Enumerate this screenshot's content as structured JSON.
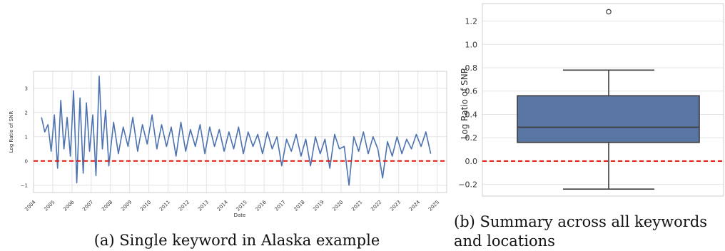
{
  "chart_data": [
    {
      "type": "line",
      "xlabel": "Date",
      "ylabel": "Log Ratio of SNR",
      "xlim": [
        "2004-01-01",
        "2025-07-01"
      ],
      "ylim": [
        -1.3,
        3.7
      ],
      "yticks": [
        -1,
        0,
        1,
        2,
        3
      ],
      "xticks": [
        "2004",
        "2005",
        "2006",
        "2007",
        "2008",
        "2009",
        "2010",
        "2011",
        "2012",
        "2013",
        "2014",
        "2015",
        "2016",
        "2017",
        "2018",
        "2019",
        "2020",
        "2021",
        "2022",
        "2023",
        "2024",
        "2025"
      ],
      "grid": true,
      "reference_line": {
        "y": 0,
        "color": "#e3120b",
        "style": "dashed"
      },
      "series_color": "#4c72b0",
      "series": [
        {
          "x": [
            "2004-06",
            "2004-08",
            "2004-10",
            "2004-12",
            "2005-02",
            "2005-04",
            "2005-06",
            "2005-08",
            "2005-10",
            "2005-12",
            "2006-02",
            "2006-04",
            "2006-06",
            "2006-08",
            "2006-10",
            "2006-12",
            "2007-02",
            "2007-04",
            "2007-06",
            "2007-08",
            "2007-10",
            "2007-12",
            "2008-03",
            "2008-06",
            "2008-09",
            "2008-12",
            "2009-03",
            "2009-06",
            "2009-09",
            "2009-12",
            "2010-03",
            "2010-06",
            "2010-09",
            "2010-12",
            "2011-03",
            "2011-06",
            "2011-09",
            "2011-12",
            "2012-03",
            "2012-06",
            "2012-09",
            "2012-12",
            "2013-03",
            "2013-06",
            "2013-09",
            "2013-12",
            "2014-03",
            "2014-06",
            "2014-09",
            "2014-12",
            "2015-03",
            "2015-06",
            "2015-09",
            "2015-12",
            "2016-03",
            "2016-06",
            "2016-09",
            "2016-12",
            "2017-03",
            "2017-06",
            "2017-09",
            "2017-12",
            "2018-03",
            "2018-06",
            "2018-09",
            "2018-12",
            "2019-03",
            "2019-06",
            "2019-09",
            "2019-12",
            "2020-03",
            "2020-06",
            "2020-09",
            "2020-12",
            "2021-03",
            "2021-06",
            "2021-09",
            "2021-12",
            "2022-03",
            "2022-06",
            "2022-09",
            "2022-12",
            "2023-03",
            "2023-06",
            "2023-09",
            "2023-12",
            "2024-03",
            "2024-06",
            "2024-09"
          ],
          "y": [
            1.8,
            1.2,
            1.5,
            0.4,
            1.9,
            -0.3,
            2.5,
            0.5,
            1.8,
            0.2,
            2.9,
            -0.9,
            2.6,
            -0.5,
            2.4,
            0.4,
            1.9,
            -0.6,
            3.5,
            0.5,
            2.1,
            -0.2,
            1.6,
            0.3,
            1.4,
            0.6,
            1.8,
            0.4,
            1.5,
            0.7,
            1.9,
            0.5,
            1.5,
            0.6,
            1.4,
            0.2,
            1.6,
            0.4,
            1.3,
            0.6,
            1.5,
            0.3,
            1.4,
            0.6,
            1.3,
            0.4,
            1.2,
            0.5,
            1.4,
            0.3,
            1.2,
            0.6,
            1.1,
            0.3,
            1.2,
            0.5,
            1.0,
            -0.2,
            0.9,
            0.4,
            1.1,
            0.2,
            0.9,
            -0.2,
            1.0,
            0.3,
            0.9,
            -0.3,
            1.1,
            0.5,
            0.6,
            -1.0,
            1.0,
            0.4,
            1.2,
            0.3,
            1.0,
            0.5,
            -0.7,
            0.8,
            0.2,
            1.0,
            0.3,
            0.9,
            0.5,
            1.1,
            0.6,
            1.2,
            0.3
          ]
        }
      ],
      "caption": "(a) Single keyword in Alaska example"
    },
    {
      "type": "box",
      "ylabel": "Log Ratio of SNR",
      "ylim": [
        -0.3,
        1.35
      ],
      "yticks": [
        -0.2,
        0.0,
        0.2,
        0.4,
        0.6,
        0.8,
        1.0,
        1.2
      ],
      "ytick_labels": [
        "−0.2",
        "0.0",
        "0.2",
        "0.4",
        "0.6",
        "0.8",
        "1.0",
        "1.2"
      ],
      "grid": true,
      "reference_line": {
        "y": 0,
        "color": "#e3120b",
        "style": "dashed"
      },
      "box": {
        "min": -0.24,
        "q1": 0.16,
        "median": 0.29,
        "q3": 0.56,
        "max": 0.78,
        "outliers": [
          1.28
        ]
      },
      "box_color": "#5875a4",
      "caption_line1": "(b) Summary across all keywords",
      "caption_line2": "and locations"
    }
  ]
}
